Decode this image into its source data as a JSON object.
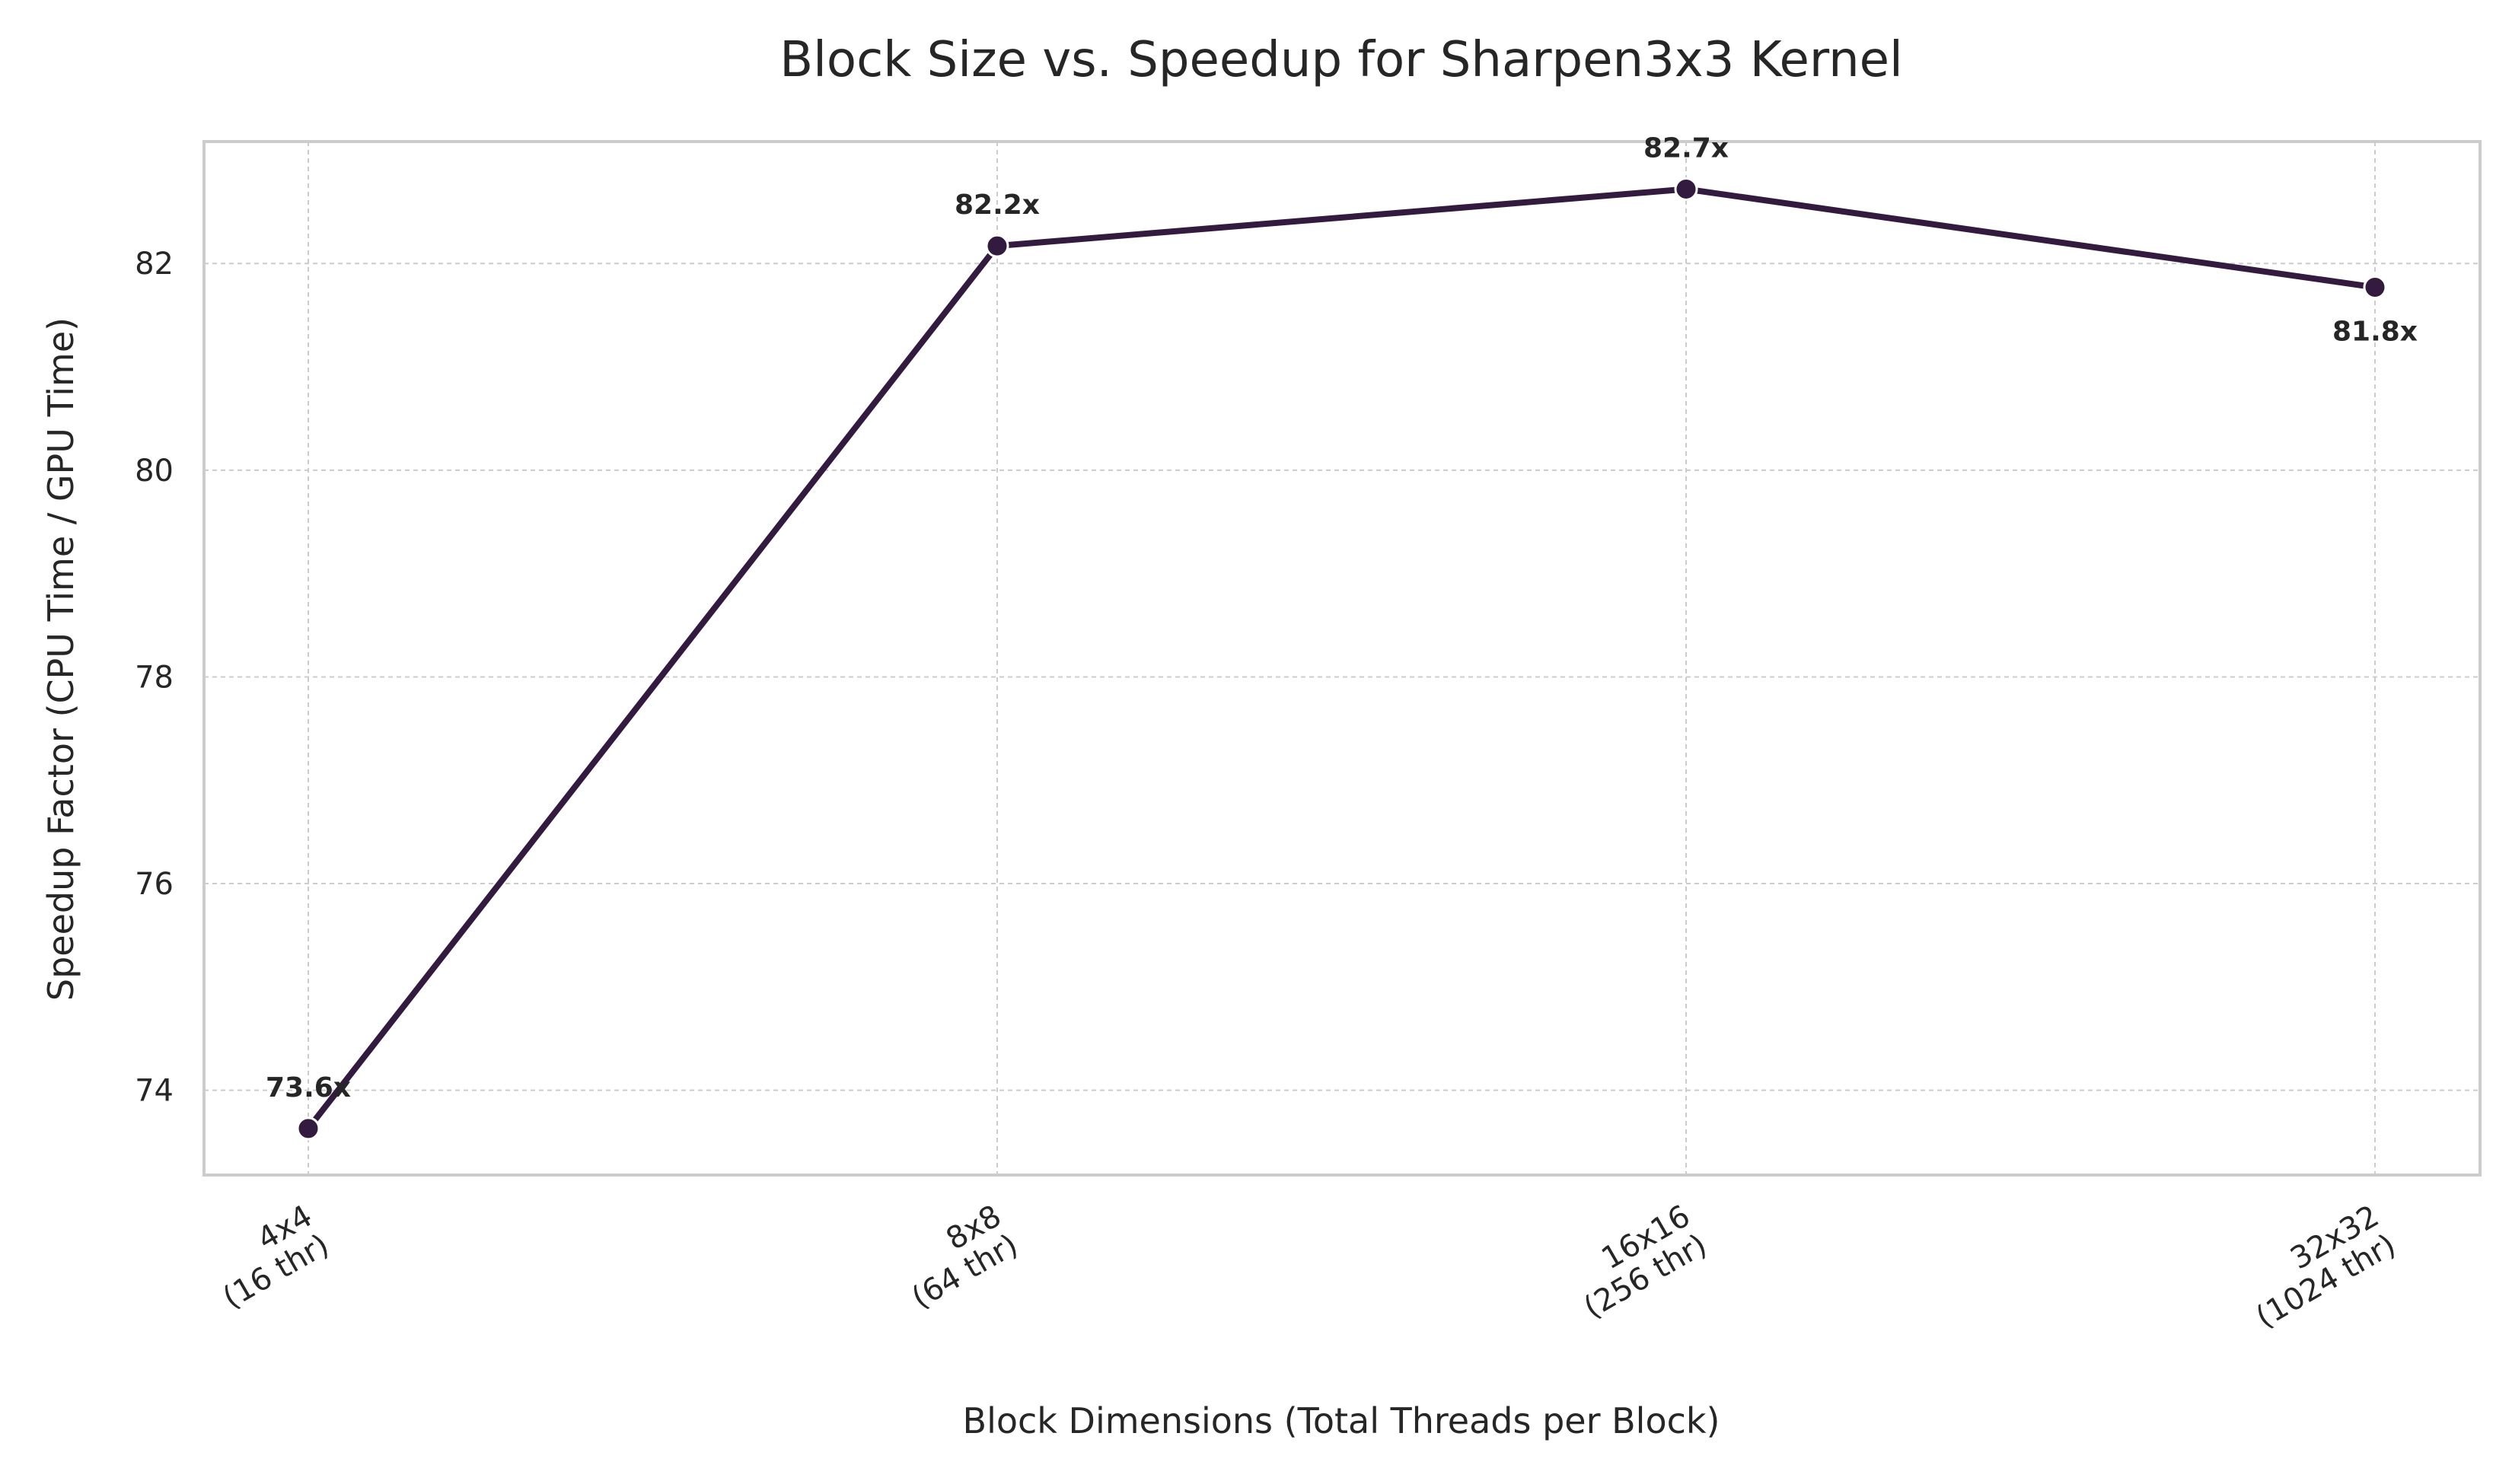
{
  "chart_data": {
    "type": "line",
    "title": "Block Size vs. Speedup for Sharpen3x3 Kernel",
    "xlabel": "Block Dimensions (Total Threads per Block)",
    "ylabel": "Speedup Factor (CPU Time / GPU Time)",
    "categories": [
      [
        "4x4",
        "(16 thr)"
      ],
      [
        "8x8",
        "(64 thr)"
      ],
      [
        "16x16",
        "(256 thr)"
      ],
      [
        "32x32",
        "(1024 thr)"
      ]
    ],
    "values": [
      73.63,
      82.17,
      82.72,
      81.77
    ],
    "data_labels": [
      "73.6x",
      "82.2x",
      "82.7x",
      "81.8x"
    ],
    "yticks": [
      74,
      76,
      78,
      80,
      82
    ],
    "ylim": [
      73.18,
      83.18
    ],
    "grid": true,
    "line_color": "#331a3f",
    "marker": "circle"
  }
}
